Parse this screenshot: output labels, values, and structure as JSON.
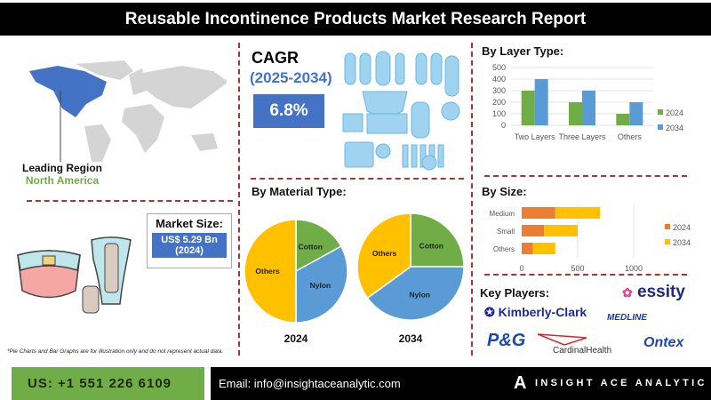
{
  "title": "Reusable Incontinence Products Market Research Report",
  "region": {
    "label": "Leading Region",
    "value": "North America"
  },
  "cagr": {
    "label": "CAGR",
    "period": "(2025-2034)",
    "value": "6.8%"
  },
  "market_size": {
    "label": "Market Size:",
    "value": "US$ 5.29 Bn",
    "year": "(2024)"
  },
  "disclaimer": "*Pie Charts and Bar Graphs are for illustration only and do not represent actual data.",
  "footer": {
    "phone": "US: +1 551 226 6109",
    "email": "Email: info@insightaceanalytic.com",
    "brand": "INSIGHT ACE ANALYTIC"
  },
  "key_players": {
    "label": "Key Players:",
    "companies": [
      "essity",
      "Kimberly-Clark",
      "MEDLINE",
      "P&G",
      "CardinalHealth",
      "Ontex"
    ]
  },
  "colors": {
    "green": "#70ad47",
    "blue": "#5b9bd5",
    "orange": "#ed7d31",
    "yellow": "#ffc000",
    "navy": "#4472c4"
  },
  "chart_data": [
    {
      "type": "bar",
      "title": "By Layer Type:",
      "categories": [
        "Two Layers",
        "Three Layers",
        "Others"
      ],
      "series": [
        {
          "name": "2024",
          "values": [
            300,
            200,
            100
          ]
        },
        {
          "name": "2034",
          "values": [
            400,
            300,
            200
          ]
        }
      ],
      "ylim": [
        0,
        500
      ],
      "yticks": [
        "0",
        "100",
        "200",
        "300",
        "400",
        "500"
      ],
      "legend": "right"
    },
    {
      "type": "bar",
      "orientation": "horizontal",
      "stacked": true,
      "title": "By Size:",
      "categories": [
        "Medium",
        "Small",
        "Others"
      ],
      "series": [
        {
          "name": "2024",
          "values": [
            300,
            200,
            100
          ]
        },
        {
          "name": "2034",
          "values": [
            400,
            300,
            200
          ]
        }
      ],
      "xlim": [
        0,
        1000
      ],
      "xticks": [
        "0",
        "500",
        "1000"
      ],
      "legend": "right"
    },
    {
      "type": "pie",
      "title": "By Material Type:",
      "pies": [
        {
          "label": "2024",
          "slices": [
            {
              "name": "Cotton",
              "value": 17
            },
            {
              "name": "Nylon",
              "value": 33
            },
            {
              "name": "Others",
              "value": 50
            }
          ]
        },
        {
          "label": "2034",
          "slices": [
            {
              "name": "Cotton",
              "value": 25
            },
            {
              "name": "Nylon",
              "value": 40
            },
            {
              "name": "Others",
              "value": 35
            }
          ]
        }
      ]
    }
  ]
}
